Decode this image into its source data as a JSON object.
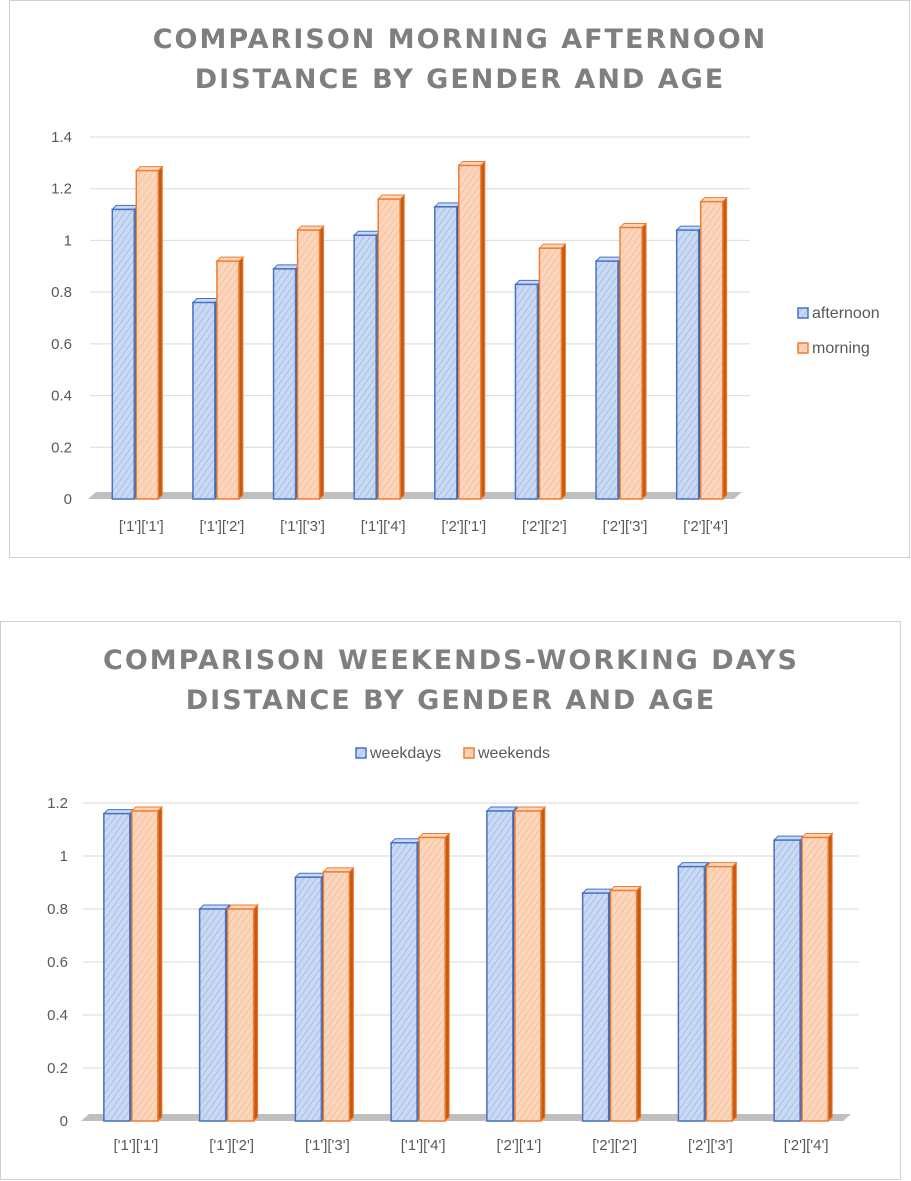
{
  "colors": {
    "blue_face": "#c9d8f3",
    "blue_stroke": "#4472c4",
    "blue_dark": "#2f5597",
    "orange_face": "#fbd6bd",
    "orange_stroke": "#ed7d31",
    "orange_dark": "#c55a11",
    "grid": "#d9d9d9",
    "floor": "#bfbfbf"
  },
  "chart_data": [
    {
      "type": "bar",
      "title_lines": [
        "COMPARISON MORNING AFTERNOON",
        "DISTANCE BY GENDER AND AGE"
      ],
      "categories": [
        "['1']['1']",
        "['1']['2']",
        "['1']['3']",
        "['1']['4']",
        "['2']['1']",
        "['2']['2']",
        "['2']['3']",
        "['2']['4']"
      ],
      "series": [
        {
          "name": "afternoon",
          "color": "blue",
          "values": [
            1.12,
            0.76,
            0.89,
            1.02,
            1.13,
            0.83,
            0.92,
            1.04
          ]
        },
        {
          "name": "morning",
          "color": "orange",
          "values": [
            1.27,
            0.92,
            1.04,
            1.16,
            1.29,
            0.97,
            1.05,
            1.15
          ]
        }
      ],
      "yticks": [
        "0",
        "0.2",
        "0.4",
        "0.6",
        "0.8",
        "1",
        "1.2",
        "1.4"
      ],
      "ylim": [
        0,
        1.4
      ],
      "grid": true,
      "legend": "right"
    },
    {
      "type": "bar",
      "title_lines": [
        "COMPARISON WEEKENDS-WORKING DAYS",
        "DISTANCE BY GENDER AND AGE"
      ],
      "categories": [
        "['1']['1']",
        "['1']['2']",
        "['1']['3']",
        "['1']['4']",
        "['2']['1']",
        "['2']['2']",
        "['2']['3']",
        "['2']['4']"
      ],
      "series": [
        {
          "name": "weekdays",
          "color": "blue",
          "values": [
            1.16,
            0.8,
            0.92,
            1.05,
            1.17,
            0.86,
            0.96,
            1.06
          ]
        },
        {
          "name": "weekends",
          "color": "orange",
          "values": [
            1.17,
            0.8,
            0.94,
            1.07,
            1.17,
            0.87,
            0.96,
            1.07
          ]
        }
      ],
      "yticks": [
        "0",
        "0.2",
        "0.4",
        "0.6",
        "0.8",
        "1",
        "1.2"
      ],
      "ylim": [
        0,
        1.2
      ],
      "grid": true,
      "legend": "top"
    }
  ]
}
